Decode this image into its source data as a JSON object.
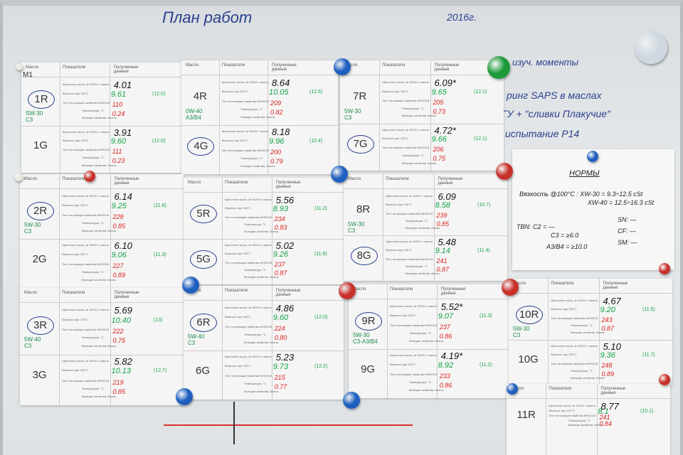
{
  "board": {
    "title": "План работ",
    "year": "2016г.",
    "notes": [
      "изуч. моменты",
      "ринг SAPS в маслах",
      "ГУ + \"сливки Плакучие\"",
      "испытание P14"
    ],
    "norms": {
      "title": "НОРМЫ",
      "lines": [
        "Вязкость @100°C : XW-30 = 9.3÷12.5 cSt",
        "XW-40 = 12.5÷16.3 cSt",
        "TBN:  C2 = —",
        "C3 = ≥6.0",
        "A3/B4 = ≥10.0",
        "SN: —",
        "CF: —",
        "SM: —"
      ]
    },
    "header": [
      "Масло",
      "Показатели",
      "Полученные данные"
    ],
    "indicators": [
      "Щелочное число, мг КОН/1 г масла",
      "Вязкость при 100°C",
      "Тест на моющие свойства MHSO18",
      "Температура, °C",
      "Моющие свойства, баллы"
    ],
    "sheets": [
      {
        "note": "M1",
        "oils": [
          {
            "code": "1R",
            "circled": true,
            "spec": [
              "SW-30",
              "C3"
            ],
            "tbn": "4.01",
            "visc": "9.61",
            "visc_alt": "(12.0)",
            "temp": "110",
            "wash": "0.24"
          },
          {
            "code": "1G",
            "circled": false,
            "spec": [],
            "tbn": "3.91",
            "visc": "9.60",
            "visc_alt": "(12.0)",
            "temp": "111",
            "wash": "0.23"
          }
        ]
      },
      {
        "oils": [
          {
            "code": "4R",
            "circled": false,
            "spec": [
              "0W-40",
              "A3/B4"
            ],
            "tbn": "8.64",
            "visc": "10.05",
            "visc_alt": "(12.6)",
            "temp": "209",
            "wash": "0.82"
          },
          {
            "code": "4G",
            "circled": true,
            "spec": [],
            "tbn": "8.18",
            "visc": "9.96",
            "visc_alt": "(12.4)",
            "temp": "200",
            "wash": "0.79"
          }
        ]
      },
      {
        "oils": [
          {
            "code": "7R",
            "circled": false,
            "spec": [
              "5W-30",
              "C3"
            ],
            "tbn": "6.09*",
            "visc": "9.65",
            "visc_alt": "(12.1)",
            "temp": "205",
            "wash": "0.73"
          },
          {
            "code": "7G",
            "circled": true,
            "spec": [],
            "tbn": "4.72*",
            "visc": "9.66",
            "visc_alt": "(12.1)",
            "temp": "206",
            "wash": "0.75"
          }
        ]
      },
      {
        "oils": [
          {
            "code": "2R",
            "circled": true,
            "spec": [
              "5W-30",
              "C3"
            ],
            "tbn": "6.14",
            "visc": "9.25",
            "visc_alt": "(11.6)",
            "temp": "228",
            "wash": "0.85"
          },
          {
            "code": "2G",
            "circled": false,
            "spec": [],
            "tbn": "6.10",
            "visc": "9.06",
            "visc_alt": "(11.3)",
            "temp": "227",
            "wash": "0.89"
          }
        ]
      },
      {
        "oils": [
          {
            "code": "5R",
            "circled": true,
            "spec": [],
            "tbn": "5.56",
            "visc": "8.93",
            "visc_alt": "(11.2)",
            "temp": "234",
            "wash": "0.83"
          },
          {
            "code": "5G",
            "circled": true,
            "spec": [],
            "tbn": "5.02",
            "visc": "9.26",
            "visc_alt": "(11.6)",
            "temp": "237",
            "wash": "0.87"
          }
        ]
      },
      {
        "oils": [
          {
            "code": "8R",
            "circled": false,
            "spec": [
              "5W-30",
              "C3"
            ],
            "tbn": "6.09",
            "visc": "8.58",
            "visc_alt": "(10.7)",
            "temp": "239",
            "wash": "0.85"
          },
          {
            "code": "8G",
            "circled": true,
            "spec": [],
            "tbn": "5.48",
            "visc": "9.14",
            "visc_alt": "(11.4)",
            "temp": "241",
            "wash": "0.87"
          }
        ]
      },
      {
        "oils": [
          {
            "code": "3R",
            "circled": true,
            "spec": [
              "5W-40",
              "C3"
            ],
            "tbn": "5.69",
            "visc": "10.40",
            "visc_alt": "(13)",
            "temp": "222",
            "wash": "0.75"
          },
          {
            "code": "3G",
            "circled": false,
            "spec": [],
            "tbn": "5.82",
            "visc": "10.13",
            "visc_alt": "(12.7)",
            "temp": "219",
            "wash": "0.85"
          }
        ]
      },
      {
        "oils": [
          {
            "code": "6R",
            "circled": true,
            "spec": [
              "5W-40",
              "C3"
            ],
            "tbn": "4.86",
            "visc": "9.60",
            "visc_alt": "(12.0)",
            "temp": "224",
            "wash": "0.80"
          },
          {
            "code": "6G",
            "circled": false,
            "spec": [],
            "tbn": "5.23",
            "visc": "9.73",
            "visc_alt": "(12.2)",
            "temp": "215",
            "wash": "0.77"
          }
        ]
      },
      {
        "oils": [
          {
            "code": "9R",
            "circled": true,
            "spec": [
              "5W-30",
              "C3-A3/B4"
            ],
            "tbn": "5.52*",
            "visc": "9.07",
            "visc_alt": "(11.3)",
            "temp": "237",
            "wash": "0.86"
          },
          {
            "code": "9G",
            "circled": false,
            "spec": [],
            "tbn": "4.19*",
            "visc": "8.92",
            "visc_alt": "(11.2)",
            "temp": "233",
            "wash": "0.86"
          }
        ]
      },
      {
        "oils": [
          {
            "code": "10R",
            "circled": true,
            "spec": [
              "5W-30",
              "C3"
            ],
            "tbn": "4.67",
            "visc": "9.20",
            "visc_alt": "(11.5)",
            "temp": "243",
            "wash": "0.87"
          },
          {
            "code": "10G",
            "circled": false,
            "spec": [],
            "tbn": "5.10",
            "visc": "9.36",
            "visc_alt": "(11.7)",
            "temp": "248",
            "wash": "0.89"
          }
        ]
      },
      {
        "oils": [
          {
            "code": "11R",
            "circled": false,
            "spec": [],
            "tbn": "8.77",
            "visc": "8.1",
            "visc_alt": "(10.1)",
            "temp": "241",
            "wash": "0.84"
          }
        ]
      }
    ]
  }
}
